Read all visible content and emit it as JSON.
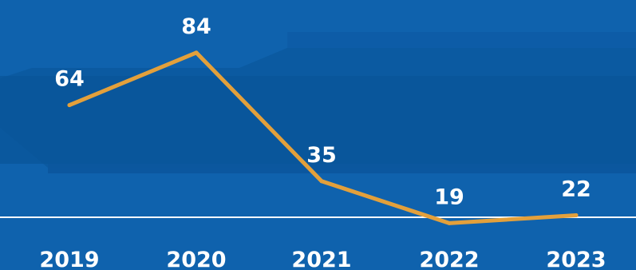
{
  "colors": {
    "background": "#0f62ad",
    "line": "#e3a03b",
    "text": "#ffffff",
    "axis": "#ffffff"
  },
  "chart_data": {
    "type": "line",
    "x": [
      "2019",
      "2020",
      "2021",
      "2022",
      "2023"
    ],
    "values": [
      64,
      84,
      35,
      19,
      22
    ],
    "ylim": [
      0,
      100
    ],
    "grid": false,
    "data_labels": true,
    "xlabel": "",
    "ylabel": ""
  }
}
